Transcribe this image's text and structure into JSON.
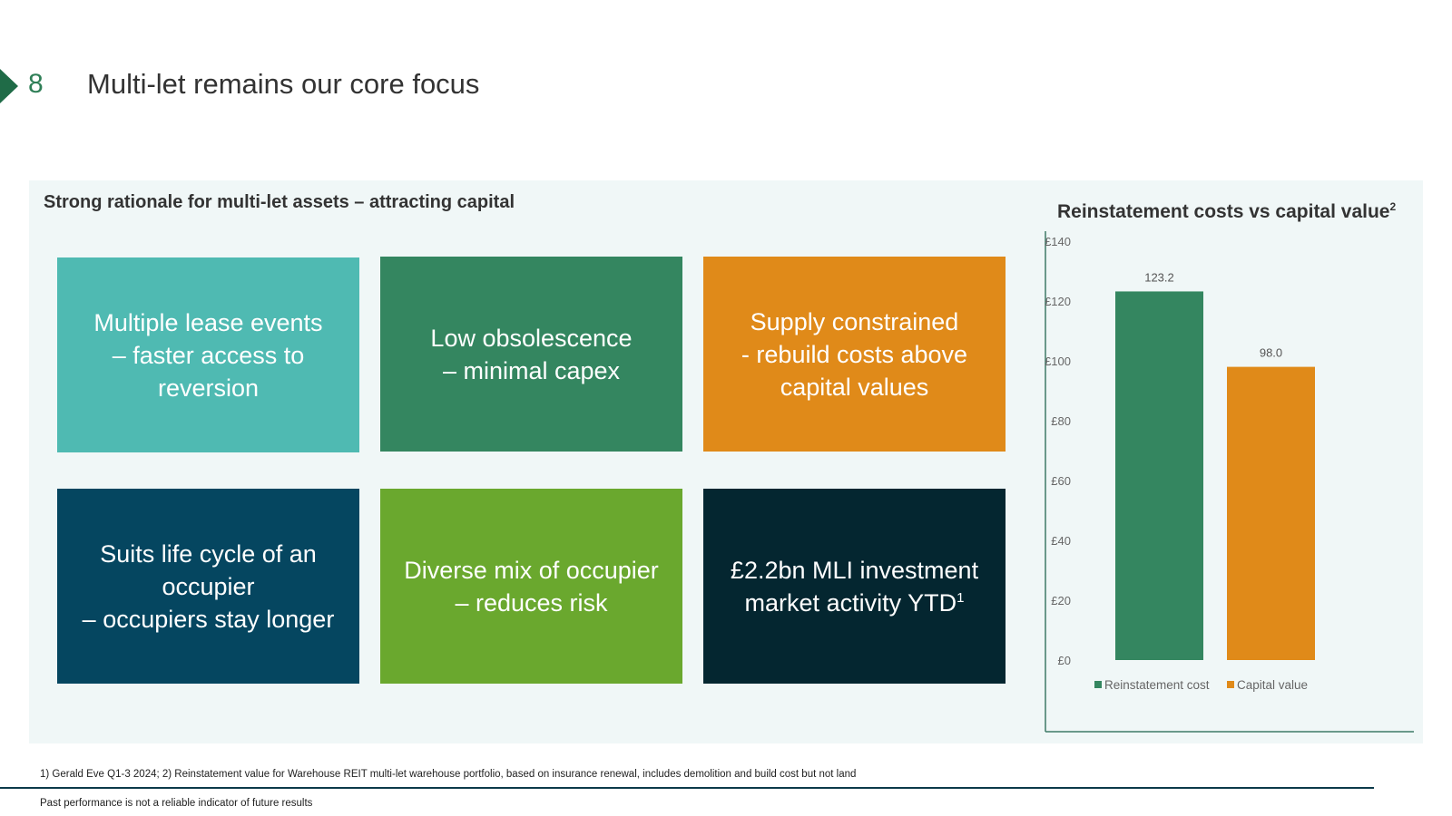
{
  "header": {
    "slide_number": "8",
    "title": "Multi-let remains our core focus"
  },
  "panel": {
    "heading": "Strong rationale for multi-let assets – attracting capital"
  },
  "tiles": [
    {
      "text": "Multiple lease events\n– faster access to\nreversion",
      "sup": "",
      "color": "#4fbab2"
    },
    {
      "text": "Low obsolescence\n– minimal capex",
      "sup": "",
      "color": "#348660"
    },
    {
      "text": "Supply constrained\n- rebuild costs above\ncapital values",
      "sup": "",
      "color": "#e08a19"
    },
    {
      "text": "Suits life cycle of an\noccupier\n– occupiers stay longer",
      "sup": "",
      "color": "#054660"
    },
    {
      "text": "Diverse mix of occupier\n– reduces risk",
      "sup": "",
      "color": "#6aa82e"
    },
    {
      "text": "£2.2bn MLI investment\nmarket activity YTD",
      "sup": "1",
      "color": "#042630"
    }
  ],
  "chart_data": {
    "type": "bar",
    "title": "Reinstatement costs vs capital value",
    "title_sup": "2",
    "categories": [
      "Reinstatement cost",
      "Capital value"
    ],
    "values": [
      123.2,
      98.0
    ],
    "value_labels": [
      "123.2",
      "98.0"
    ],
    "colors": [
      "#348660",
      "#e08a19"
    ],
    "ylim": [
      0,
      140
    ],
    "yticks": [
      0,
      20,
      40,
      60,
      80,
      100,
      120,
      140
    ],
    "ytick_labels": [
      "£0",
      "£20",
      "£40",
      "£60",
      "£80",
      "£100",
      "£120",
      "£140"
    ],
    "legend": [
      "Reinstatement cost",
      "Capital value"
    ],
    "legend_position": "bottom",
    "grid": false
  },
  "footer": {
    "footnote": "1) Gerald Eve Q1-3 2024; 2) Reinstatement value for Warehouse REIT multi-let warehouse portfolio, based on insurance renewal, includes demolition and build cost but not land",
    "disclaimer": "Past performance is not a reliable indicator of future results"
  }
}
